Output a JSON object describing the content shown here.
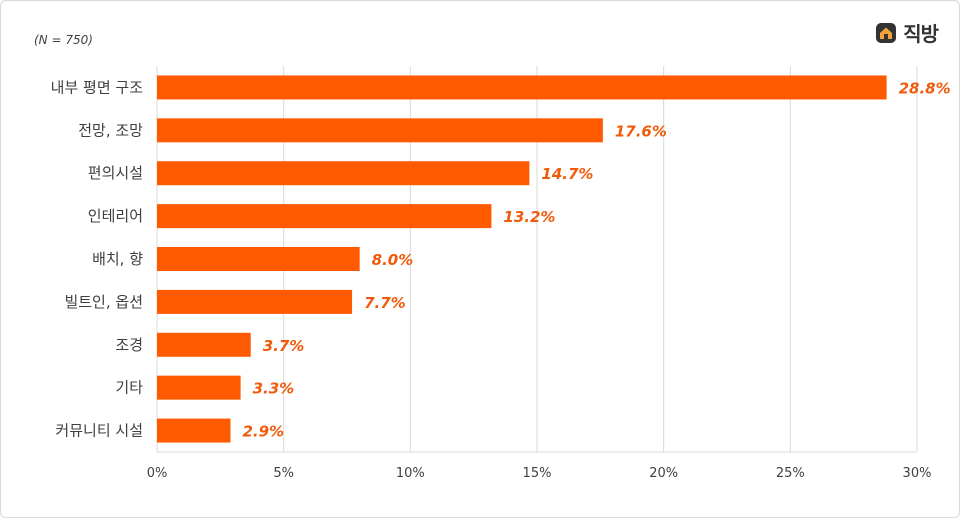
{
  "note": "(N = 750)",
  "brand": {
    "name": "직방",
    "icon": "house-logo-icon",
    "color": "#f2a23a"
  },
  "colors": {
    "bar": "#ff5a00",
    "value_label": "#f05a0a",
    "grid": "#d9d9d9"
  },
  "chart_data": {
    "type": "bar",
    "orientation": "horizontal",
    "title": "",
    "xlabel": "",
    "ylabel": "",
    "categories": [
      "내부 평면 구조",
      "전망, 조망",
      "편의시설",
      "인테리어",
      "배치, 향",
      "빌트인, 옵션",
      "조경",
      "기타",
      "커뮤니티 시설"
    ],
    "values": [
      28.8,
      17.6,
      14.7,
      13.2,
      8.0,
      7.7,
      3.7,
      3.3,
      2.9
    ],
    "value_labels": [
      "28.8%",
      "17.6%",
      "14.7%",
      "13.2%",
      "8.0%",
      "7.7%",
      "3.7%",
      "3.3%",
      "2.9%"
    ],
    "xlim": [
      0,
      30
    ],
    "ticks": [
      0,
      5,
      10,
      15,
      20,
      25,
      30
    ],
    "tick_labels": [
      "0%",
      "5%",
      "10%",
      "15%",
      "20%",
      "25%",
      "30%"
    ],
    "grid": true,
    "legend": "none"
  }
}
